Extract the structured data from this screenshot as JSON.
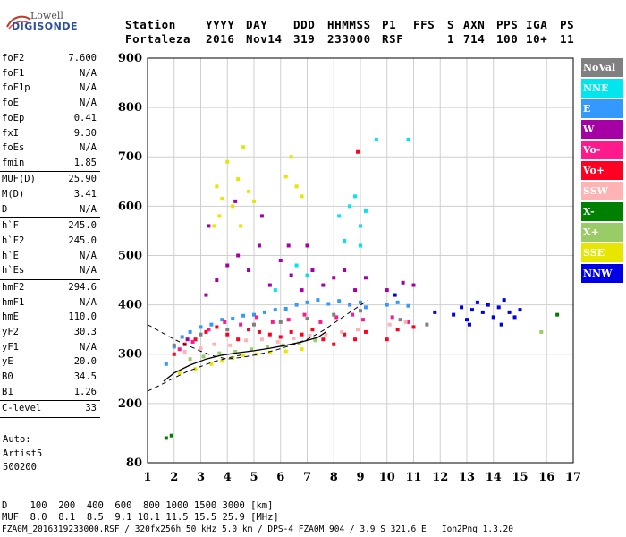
{
  "logo": {
    "top": "Lowell",
    "bottom": "DIGISONDE"
  },
  "header": {
    "labels": [
      "Station",
      "YYYY",
      "DAY",
      "DDD",
      "HHMMSS",
      "P1",
      "FFS",
      "S",
      "AXN",
      "PPS",
      "IGA",
      "PS"
    ],
    "values": [
      "Fortaleza",
      "2016",
      "Nov14",
      "319",
      "233000",
      "RSF",
      "",
      "1",
      "714",
      "100",
      "10+",
      "11"
    ]
  },
  "params": [
    {
      "key": "foF2",
      "value": "7.600"
    },
    {
      "key": "foF1",
      "value": "N/A"
    },
    {
      "key": "foF1p",
      "value": "N/A"
    },
    {
      "key": "foE",
      "value": "N/A"
    },
    {
      "key": "foEp",
      "value": "0.41"
    },
    {
      "key": "fxI",
      "value": "9.30"
    },
    {
      "key": "foEs",
      "value": "N/A"
    },
    {
      "key": "fmin",
      "value": "1.85"
    },
    {
      "key": "MUF(D)",
      "value": "25.90"
    },
    {
      "key": "M(D)",
      "value": "3.41"
    },
    {
      "key": "D",
      "value": "N/A"
    },
    {
      "key": "h`F",
      "value": "245.0"
    },
    {
      "key": "h`F2",
      "value": "245.0"
    },
    {
      "key": "h`E",
      "value": "N/A"
    },
    {
      "key": "h`Es",
      "value": "N/A"
    },
    {
      "key": "hmF2",
      "value": "294.6"
    },
    {
      "key": "hmF1",
      "value": "N/A"
    },
    {
      "key": "hmE",
      "value": "110.0"
    },
    {
      "key": "yF2",
      "value": "30.3"
    },
    {
      "key": "yF1",
      "value": "N/A"
    },
    {
      "key": "yE",
      "value": "20.0"
    },
    {
      "key": "B0",
      "value": "34.5"
    },
    {
      "key": "B1",
      "value": "1.26"
    },
    {
      "key": "C-level",
      "value": "33"
    }
  ],
  "auto": {
    "line1": "Auto:",
    "line2": "Artist5",
    "line3": "500200"
  },
  "legend": [
    {
      "label": "NoVal",
      "color": "#808080",
      "text": "#ffffff"
    },
    {
      "label": "NNE",
      "color": "#00e5ee",
      "text": "#ffffff"
    },
    {
      "label": "E",
      "color": "#3399ff",
      "text": "#ffffff"
    },
    {
      "label": "W",
      "color": "#a500a5",
      "text": "#ffffff"
    },
    {
      "label": "Vo-",
      "color": "#ff1a8c",
      "text": "#ffffff"
    },
    {
      "label": "Vo+",
      "color": "#ff0022",
      "text": "#ffffff"
    },
    {
      "label": "SSW",
      "color": "#ffb3b3",
      "text": "#ffffff"
    },
    {
      "label": "X-",
      "color": "#008000",
      "text": "#ffffff"
    },
    {
      "label": "X+",
      "color": "#99cc66",
      "text": "#ffffff"
    },
    {
      "label": "SSE",
      "color": "#e6e600",
      "text": "#ffffff"
    },
    {
      "label": "NNW",
      "color": "#0000e6",
      "text": "#ffffff"
    }
  ],
  "footer": {
    "d_row": "D    100  200  400  600  800 1000 1500 3000 [km]",
    "muf_row": "MUF  8.0  8.1  8.5  9.1 10.1 11.5 15.5 25.9 [MHz]",
    "file_row": "FZA0M_2016319233000.RSF / 320fx256h 50 kHz 5.0 km / DPS-4 FZA0M 904 / 3.9 S 321.6 E   Ion2Png 1.3.20"
  },
  "chart_data": {
    "type": "scatter",
    "xlim": [
      1,
      17
    ],
    "ylim": [
      80,
      900
    ],
    "x_ticks": [
      1,
      2,
      3,
      4,
      5,
      6,
      7,
      8,
      9,
      10,
      11,
      12,
      13,
      14,
      15,
      16,
      17
    ],
    "y_ticks": [
      80,
      200,
      300,
      400,
      500,
      600,
      700,
      800,
      900
    ],
    "grid": true,
    "legend_position": "right",
    "series": [
      {
        "name": "SSE",
        "color": "#e6e600",
        "points": [
          [
            2.2,
            262
          ],
          [
            2.8,
            270
          ],
          [
            3.4,
            280
          ],
          [
            3.8,
            286
          ],
          [
            4.2,
            292
          ],
          [
            4.6,
            298
          ],
          [
            5.1,
            300
          ],
          [
            5.6,
            304
          ],
          [
            6.2,
            306
          ],
          [
            6.8,
            310
          ],
          [
            3.6,
            640
          ],
          [
            3.8,
            615
          ],
          [
            4.0,
            690
          ],
          [
            4.2,
            600
          ],
          [
            4.4,
            655
          ],
          [
            4.6,
            720
          ],
          [
            4.8,
            630
          ],
          [
            5.0,
            610
          ],
          [
            6.2,
            660
          ],
          [
            6.4,
            700
          ],
          [
            6.6,
            640
          ],
          [
            6.8,
            620
          ],
          [
            3.7,
            580
          ],
          [
            4.5,
            560
          ],
          [
            3.5,
            560
          ]
        ]
      },
      {
        "name": "E",
        "color": "#3399ff",
        "points": [
          [
            1.7,
            280
          ],
          [
            2.0,
            315
          ],
          [
            2.3,
            335
          ],
          [
            2.6,
            345
          ],
          [
            3.0,
            355
          ],
          [
            3.4,
            360
          ],
          [
            3.8,
            370
          ],
          [
            4.2,
            372
          ],
          [
            4.6,
            378
          ],
          [
            5.0,
            380
          ],
          [
            5.4,
            385
          ],
          [
            5.8,
            390
          ],
          [
            6.2,
            392
          ],
          [
            6.6,
            400
          ],
          [
            7.0,
            405
          ],
          [
            7.4,
            410
          ],
          [
            7.8,
            402
          ],
          [
            8.2,
            408
          ],
          [
            8.6,
            400
          ],
          [
            9.0,
            405
          ],
          [
            9.2,
            395
          ],
          [
            10.0,
            400
          ],
          [
            10.4,
            405
          ],
          [
            10.8,
            398
          ]
        ]
      },
      {
        "name": "W",
        "color": "#a500a5",
        "points": [
          [
            2.5,
            330
          ],
          [
            3.2,
            420
          ],
          [
            3.6,
            450
          ],
          [
            4.0,
            480
          ],
          [
            4.4,
            500
          ],
          [
            4.8,
            470
          ],
          [
            5.2,
            520
          ],
          [
            5.6,
            440
          ],
          [
            6.0,
            490
          ],
          [
            6.4,
            460
          ],
          [
            6.8,
            430
          ],
          [
            7.2,
            470
          ],
          [
            7.6,
            440
          ],
          [
            8.0,
            455
          ],
          [
            8.4,
            470
          ],
          [
            8.8,
            430
          ],
          [
            9.2,
            455
          ],
          [
            3.3,
            560
          ],
          [
            4.3,
            610
          ],
          [
            5.3,
            580
          ],
          [
            6.3,
            520
          ],
          [
            7.0,
            520
          ],
          [
            10.0,
            430
          ],
          [
            10.6,
            445
          ],
          [
            11.0,
            440
          ]
        ]
      },
      {
        "name": "Vo+",
        "color": "#ff0022",
        "points": [
          [
            2.0,
            300
          ],
          [
            2.4,
            320
          ],
          [
            2.8,
            330
          ],
          [
            3.2,
            345
          ],
          [
            3.6,
            355
          ],
          [
            4.0,
            340
          ],
          [
            4.4,
            330
          ],
          [
            4.8,
            350
          ],
          [
            5.2,
            345
          ],
          [
            5.6,
            340
          ],
          [
            6.0,
            335
          ],
          [
            6.4,
            345
          ],
          [
            6.8,
            340
          ],
          [
            7.2,
            350
          ],
          [
            7.6,
            330
          ],
          [
            8.0,
            320
          ],
          [
            8.4,
            340
          ],
          [
            8.8,
            330
          ],
          [
            9.2,
            345
          ],
          [
            10.0,
            330
          ],
          [
            10.4,
            350
          ],
          [
            11.0,
            355
          ],
          [
            8.9,
            710
          ]
        ]
      },
      {
        "name": "Vo-",
        "color": "#ff1a8c",
        "points": [
          [
            2.2,
            310
          ],
          [
            2.7,
            325
          ],
          [
            3.3,
            350
          ],
          [
            3.9,
            365
          ],
          [
            4.5,
            360
          ],
          [
            5.1,
            375
          ],
          [
            5.7,
            365
          ],
          [
            6.3,
            370
          ],
          [
            6.9,
            380
          ],
          [
            7.5,
            365
          ],
          [
            8.1,
            375
          ],
          [
            8.7,
            380
          ],
          [
            9.1,
            370
          ],
          [
            10.2,
            375
          ],
          [
            10.8,
            365
          ]
        ]
      },
      {
        "name": "NNE",
        "color": "#00e5ee",
        "points": [
          [
            8.2,
            580
          ],
          [
            8.6,
            600
          ],
          [
            9.0,
            560
          ],
          [
            9.2,
            590
          ],
          [
            8.8,
            620
          ],
          [
            9.0,
            520
          ],
          [
            8.4,
            530
          ],
          [
            7.0,
            460
          ],
          [
            6.6,
            480
          ],
          [
            5.8,
            430
          ],
          [
            9.6,
            735
          ],
          [
            10.8,
            735
          ]
        ]
      },
      {
        "name": "NNW",
        "color": "#0000e6",
        "points": [
          [
            12.5,
            380
          ],
          [
            12.8,
            395
          ],
          [
            13.0,
            370
          ],
          [
            13.2,
            390
          ],
          [
            13.4,
            405
          ],
          [
            13.6,
            385
          ],
          [
            13.8,
            400
          ],
          [
            14.0,
            375
          ],
          [
            14.2,
            395
          ],
          [
            14.4,
            410
          ],
          [
            14.6,
            385
          ],
          [
            14.8,
            375
          ],
          [
            15.0,
            390
          ],
          [
            13.1,
            360
          ],
          [
            14.3,
            360
          ],
          [
            11.8,
            385
          ],
          [
            10.3,
            420
          ]
        ]
      },
      {
        "name": "SSW",
        "color": "#ffb3b3",
        "points": [
          [
            2.4,
            305
          ],
          [
            3.0,
            312
          ],
          [
            3.5,
            320
          ],
          [
            4.1,
            318
          ],
          [
            4.7,
            328
          ],
          [
            5.3,
            330
          ],
          [
            5.9,
            325
          ],
          [
            6.5,
            332
          ],
          [
            7.1,
            338
          ],
          [
            7.7,
            340
          ],
          [
            8.3,
            345
          ],
          [
            8.9,
            350
          ],
          [
            10.1,
            360
          ],
          [
            10.7,
            365
          ]
        ]
      },
      {
        "name": "X+",
        "color": "#99cc66",
        "points": [
          [
            2.6,
            290
          ],
          [
            3.1,
            295
          ],
          [
            3.7,
            302
          ],
          [
            4.3,
            305
          ],
          [
            4.9,
            310
          ],
          [
            5.5,
            315
          ],
          [
            6.1,
            318
          ],
          [
            6.7,
            322
          ],
          [
            7.3,
            328
          ],
          [
            15.8,
            345
          ]
        ]
      },
      {
        "name": "X-",
        "color": "#008000",
        "points": [
          [
            1.7,
            130
          ],
          [
            1.9,
            135
          ],
          [
            16.4,
            380
          ]
        ]
      },
      {
        "name": "NoVal",
        "color": "#808080",
        "points": [
          [
            2.0,
            318
          ],
          [
            3.0,
            340
          ],
          [
            4.0,
            350
          ],
          [
            5.0,
            360
          ],
          [
            6.0,
            365
          ],
          [
            7.0,
            372
          ],
          [
            8.0,
            380
          ],
          [
            9.0,
            388
          ],
          [
            10.5,
            370
          ],
          [
            11.5,
            360
          ]
        ]
      }
    ],
    "trace_curve": [
      [
        1.6,
        245
      ],
      [
        2.0,
        262
      ],
      [
        2.6,
        278
      ],
      [
        3.2,
        290
      ],
      [
        3.8,
        298
      ],
      [
        4.4,
        303
      ],
      [
        5.0,
        307
      ],
      [
        5.6,
        312
      ],
      [
        6.2,
        318
      ],
      [
        6.8,
        325
      ],
      [
        7.4,
        334
      ],
      [
        7.7,
        345
      ]
    ],
    "profile_dashed_upper": [
      [
        1.0,
        360
      ],
      [
        1.5,
        345
      ],
      [
        2.0,
        330
      ],
      [
        2.5,
        318
      ],
      [
        3.0,
        306
      ],
      [
        3.5,
        296
      ],
      [
        4.0,
        290
      ],
      [
        4.6,
        294
      ],
      [
        5.2,
        300
      ],
      [
        5.8,
        308
      ],
      [
        6.4,
        318
      ],
      [
        7.0,
        330
      ],
      [
        7.6,
        348
      ],
      [
        8.2,
        370
      ],
      [
        8.8,
        392
      ],
      [
        9.3,
        410
      ]
    ],
    "profile_dashed_lower": [
      [
        1.0,
        225
      ],
      [
        1.5,
        238
      ],
      [
        2.0,
        252
      ],
      [
        2.5,
        265
      ],
      [
        3.0,
        275
      ],
      [
        3.5,
        285
      ],
      [
        4.0,
        292
      ],
      [
        4.5,
        298
      ]
    ]
  }
}
